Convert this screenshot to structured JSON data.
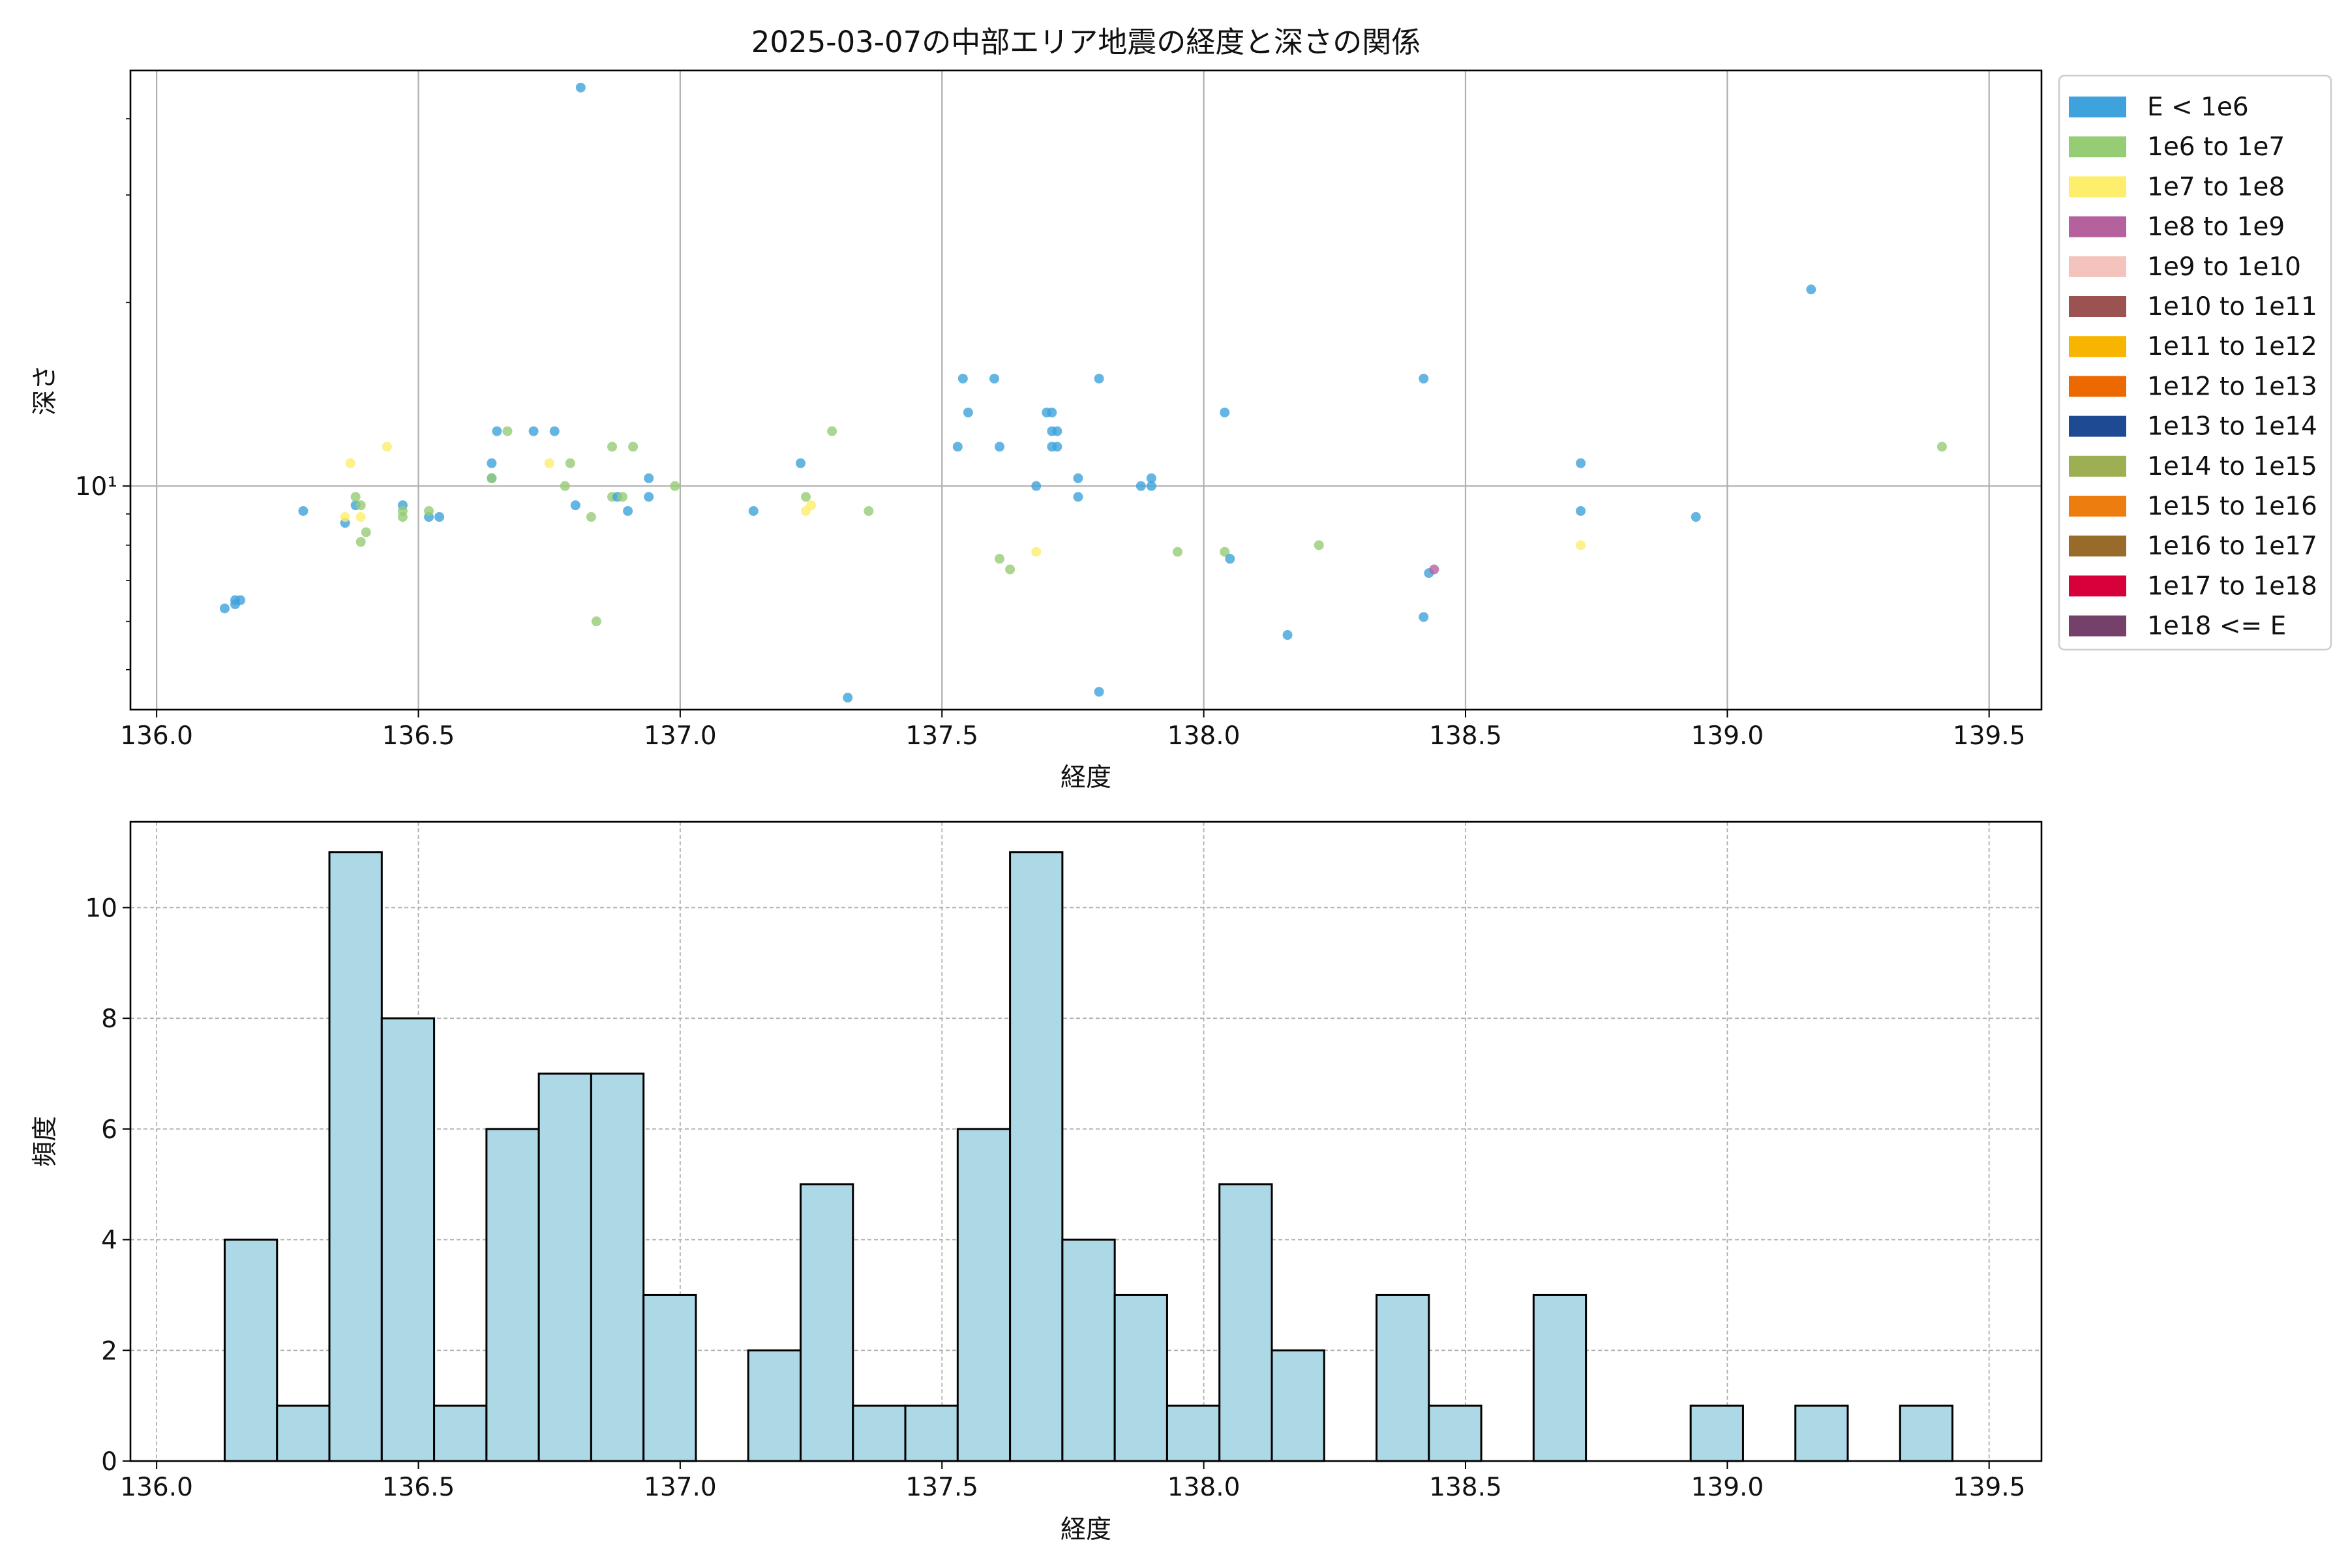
{
  "chart_data": [
    {
      "type": "scatter",
      "title": "2025-03-07の中部エリア地震の経度と深さの関係",
      "xlabel": "経度",
      "ylabel": "深さ",
      "xlim": [
        135.95,
        139.6
      ],
      "ylim": [
        4.3,
        48
      ],
      "yscale": "log",
      "x_ticks": [
        "136.0",
        "136.5",
        "137.0",
        "137.5",
        "138.0",
        "138.5",
        "139.0",
        "139.5"
      ],
      "y_ticks": [
        {
          "value": 10,
          "label": "10¹"
        }
      ],
      "grid": true,
      "legend_placement": "outside right, top",
      "legend": [
        {
          "label": "E < 1e6",
          "color": "#3ea2dc"
        },
        {
          "label": "1e6 to 1e7",
          "color": "#95cc74"
        },
        {
          "label": "1e7 to 1e8",
          "color": "#fdee6b"
        },
        {
          "label": "1e8 to 1e9",
          "color": "#b5619e"
        },
        {
          "label": "1e9 to 1e10",
          "color": "#f3c3bc"
        },
        {
          "label": "1e10 to 1e11",
          "color": "#9a5350"
        },
        {
          "label": "1e11 to 1e12",
          "color": "#f8b500"
        },
        {
          "label": "1e12 to 1e13",
          "color": "#ec6800"
        },
        {
          "label": "1e13 to 1e14",
          "color": "#1e4a94"
        },
        {
          "label": "1e14 to 1e15",
          "color": "#9caf52"
        },
        {
          "label": "1e15 to 1e16",
          "color": "#ed7d0f"
        },
        {
          "label": "1e16 to 1e17",
          "color": "#996b2a"
        },
        {
          "label": "1e17 to 1e18",
          "color": "#d7003a"
        },
        {
          "label": "1e18 <= E",
          "color": "#75406a"
        }
      ],
      "points": [
        {
          "x": 136.13,
          "y": 6.3,
          "class": 0
        },
        {
          "x": 136.15,
          "y": 6.4,
          "class": 0
        },
        {
          "x": 136.15,
          "y": 6.5,
          "class": 0
        },
        {
          "x": 136.16,
          "y": 6.5,
          "class": 0
        },
        {
          "x": 136.28,
          "y": 9.1,
          "class": 0
        },
        {
          "x": 136.36,
          "y": 8.7,
          "class": 0
        },
        {
          "x": 136.36,
          "y": 8.9,
          "class": 2
        },
        {
          "x": 136.37,
          "y": 10.9,
          "class": 2
        },
        {
          "x": 136.38,
          "y": 9.3,
          "class": 0
        },
        {
          "x": 136.38,
          "y": 9.6,
          "class": 1
        },
        {
          "x": 136.39,
          "y": 8.9,
          "class": 2
        },
        {
          "x": 136.39,
          "y": 9.3,
          "class": 1
        },
        {
          "x": 136.39,
          "y": 8.1,
          "class": 1
        },
        {
          "x": 136.4,
          "y": 8.4,
          "class": 1
        },
        {
          "x": 136.44,
          "y": 11.6,
          "class": 2
        },
        {
          "x": 136.47,
          "y": 9.3,
          "class": 0
        },
        {
          "x": 136.47,
          "y": 9.1,
          "class": 1
        },
        {
          "x": 136.47,
          "y": 8.9,
          "class": 1
        },
        {
          "x": 136.52,
          "y": 8.9,
          "class": 0
        },
        {
          "x": 136.52,
          "y": 9.1,
          "class": 1
        },
        {
          "x": 136.54,
          "y": 8.9,
          "class": 0
        },
        {
          "x": 136.64,
          "y": 10.3,
          "class": 0
        },
        {
          "x": 136.64,
          "y": 10.9,
          "class": 0
        },
        {
          "x": 136.64,
          "y": 10.3,
          "class": 1
        },
        {
          "x": 136.65,
          "y": 12.3,
          "class": 0
        },
        {
          "x": 136.67,
          "y": 12.3,
          "class": 1
        },
        {
          "x": 136.72,
          "y": 12.3,
          "class": 0
        },
        {
          "x": 136.75,
          "y": 10.9,
          "class": 2
        },
        {
          "x": 136.76,
          "y": 12.3,
          "class": 0
        },
        {
          "x": 136.78,
          "y": 10.0,
          "class": 1
        },
        {
          "x": 136.79,
          "y": 10.9,
          "class": 1
        },
        {
          "x": 136.8,
          "y": 9.3,
          "class": 0
        },
        {
          "x": 136.81,
          "y": 45.0,
          "class": 0
        },
        {
          "x": 136.83,
          "y": 8.9,
          "class": 1
        },
        {
          "x": 136.84,
          "y": 6.0,
          "class": 1
        },
        {
          "x": 136.87,
          "y": 11.6,
          "class": 1
        },
        {
          "x": 136.87,
          "y": 9.6,
          "class": 1
        },
        {
          "x": 136.88,
          "y": 9.6,
          "class": 0
        },
        {
          "x": 136.89,
          "y": 9.6,
          "class": 1
        },
        {
          "x": 136.9,
          "y": 9.1,
          "class": 0
        },
        {
          "x": 136.91,
          "y": 11.6,
          "class": 1
        },
        {
          "x": 136.94,
          "y": 9.6,
          "class": 0
        },
        {
          "x": 136.94,
          "y": 10.3,
          "class": 0
        },
        {
          "x": 136.99,
          "y": 10.0,
          "class": 1
        },
        {
          "x": 137.14,
          "y": 9.1,
          "class": 0
        },
        {
          "x": 137.23,
          "y": 10.9,
          "class": 0
        },
        {
          "x": 137.24,
          "y": 9.6,
          "class": 1
        },
        {
          "x": 137.24,
          "y": 9.1,
          "class": 2
        },
        {
          "x": 137.25,
          "y": 9.3,
          "class": 2
        },
        {
          "x": 137.29,
          "y": 12.3,
          "class": 1
        },
        {
          "x": 137.32,
          "y": 4.5,
          "class": 0
        },
        {
          "x": 137.36,
          "y": 9.1,
          "class": 1
        },
        {
          "x": 137.53,
          "y": 11.6,
          "class": 0
        },
        {
          "x": 137.54,
          "y": 15.0,
          "class": 0
        },
        {
          "x": 137.55,
          "y": 13.2,
          "class": 0
        },
        {
          "x": 137.6,
          "y": 15.0,
          "class": 0
        },
        {
          "x": 137.61,
          "y": 11.6,
          "class": 0
        },
        {
          "x": 137.61,
          "y": 7.6,
          "class": 1
        },
        {
          "x": 137.63,
          "y": 7.3,
          "class": 1
        },
        {
          "x": 137.68,
          "y": 10.0,
          "class": 0
        },
        {
          "x": 137.68,
          "y": 7.8,
          "class": 2
        },
        {
          "x": 137.7,
          "y": 13.2,
          "class": 0
        },
        {
          "x": 137.71,
          "y": 13.2,
          "class": 0
        },
        {
          "x": 137.71,
          "y": 12.3,
          "class": 0
        },
        {
          "x": 137.72,
          "y": 12.3,
          "class": 0
        },
        {
          "x": 137.71,
          "y": 11.6,
          "class": 0
        },
        {
          "x": 137.72,
          "y": 11.6,
          "class": 0
        },
        {
          "x": 137.76,
          "y": 9.6,
          "class": 0
        },
        {
          "x": 137.76,
          "y": 10.3,
          "class": 0
        },
        {
          "x": 137.8,
          "y": 15.0,
          "class": 0
        },
        {
          "x": 137.8,
          "y": 4.6,
          "class": 0
        },
        {
          "x": 137.88,
          "y": 10.0,
          "class": 0
        },
        {
          "x": 137.9,
          "y": 10.0,
          "class": 0
        },
        {
          "x": 137.9,
          "y": 10.3,
          "class": 0
        },
        {
          "x": 137.95,
          "y": 7.8,
          "class": 1
        },
        {
          "x": 138.04,
          "y": 13.2,
          "class": 0
        },
        {
          "x": 138.04,
          "y": 7.8,
          "class": 1
        },
        {
          "x": 138.05,
          "y": 7.6,
          "class": 0
        },
        {
          "x": 138.16,
          "y": 5.7,
          "class": 0
        },
        {
          "x": 138.22,
          "y": 8.0,
          "class": 1
        },
        {
          "x": 138.42,
          "y": 15.0,
          "class": 0
        },
        {
          "x": 138.42,
          "y": 6.1,
          "class": 0
        },
        {
          "x": 138.43,
          "y": 7.2,
          "class": 0
        },
        {
          "x": 138.44,
          "y": 7.3,
          "class": 3
        },
        {
          "x": 138.72,
          "y": 10.9,
          "class": 0
        },
        {
          "x": 138.72,
          "y": 9.1,
          "class": 0
        },
        {
          "x": 138.72,
          "y": 8.0,
          "class": 2
        },
        {
          "x": 138.94,
          "y": 8.9,
          "class": 0
        },
        {
          "x": 139.16,
          "y": 21.0,
          "class": 0
        },
        {
          "x": 139.41,
          "y": 11.6,
          "class": 1
        }
      ]
    },
    {
      "type": "bar",
      "subtype": "histogram",
      "xlabel": "経度",
      "ylabel": "頻度",
      "xlim": [
        135.95,
        139.6
      ],
      "ylim": [
        0,
        11.55
      ],
      "x_ticks": [
        "136.0",
        "136.5",
        "137.0",
        "137.5",
        "138.0",
        "138.5",
        "139.0",
        "139.5"
      ],
      "y_ticks": [
        "0",
        "2",
        "4",
        "6",
        "8",
        "10"
      ],
      "grid": true,
      "bar_color": "#add8e6",
      "bins_start": 136.13,
      "bin_width": 0.1,
      "counts": [
        4,
        1,
        11,
        8,
        1,
        6,
        7,
        7,
        3,
        0,
        2,
        5,
        1,
        1,
        6,
        11,
        4,
        3,
        1,
        5,
        2,
        0,
        3,
        1,
        0,
        3,
        0,
        0,
        1,
        0,
        1,
        0,
        1
      ]
    }
  ]
}
